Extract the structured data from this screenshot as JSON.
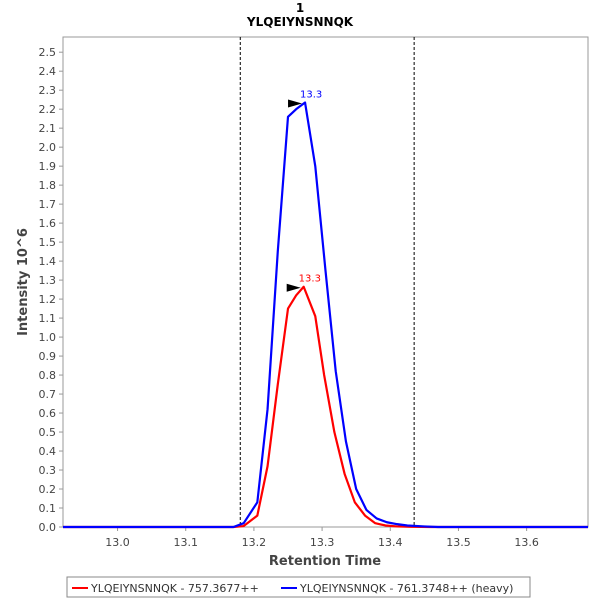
{
  "chart_data": {
    "type": "line",
    "title": "1",
    "subtitle": "YLQEIYNSNNQK",
    "xlabel": "Retention Time",
    "ylabel": "Intensity 10^6",
    "xlim": [
      12.92,
      13.69
    ],
    "ylim": [
      0,
      2.58
    ],
    "x_ticks": [
      "13.0",
      "13.1",
      "13.2",
      "13.3",
      "13.4",
      "13.5",
      "13.6"
    ],
    "y_ticks": [
      "0.0",
      "0.1",
      "0.2",
      "0.3",
      "0.4",
      "0.5",
      "0.6",
      "0.7",
      "0.8",
      "0.9",
      "1.0",
      "1.1",
      "1.2",
      "1.3",
      "1.4",
      "1.5",
      "1.6",
      "1.7",
      "1.8",
      "1.9",
      "2.0",
      "2.1",
      "2.2",
      "2.3",
      "2.4",
      "2.5"
    ],
    "boundaries": [
      13.18,
      13.435
    ],
    "grid": false,
    "legend_placement": "bottom",
    "series": [
      {
        "name": "YLQEIYNSNNQK - 757.3677++",
        "color": "#ff0000",
        "peak_label": "13.3",
        "peak": [
          13.273,
          1.265
        ],
        "x": [
          12.92,
          13.17,
          13.185,
          13.205,
          13.22,
          13.235,
          13.25,
          13.262,
          13.273,
          13.29,
          13.303,
          13.318,
          13.333,
          13.348,
          13.363,
          13.378,
          13.393,
          13.41,
          13.43,
          13.46,
          13.69
        ],
        "values": [
          0,
          0,
          0.005,
          0.06,
          0.32,
          0.75,
          1.15,
          1.22,
          1.265,
          1.11,
          0.8,
          0.5,
          0.28,
          0.13,
          0.06,
          0.02,
          0.008,
          0.003,
          0.001,
          0,
          0
        ]
      },
      {
        "name": "YLQEIYNSNNQK - 761.3748++ (heavy)",
        "color": "#0000ff",
        "peak_label": "13.3",
        "peak": [
          13.275,
          2.235
        ],
        "x": [
          12.92,
          13.17,
          13.185,
          13.205,
          13.22,
          13.235,
          13.25,
          13.262,
          13.275,
          13.29,
          13.305,
          13.32,
          13.335,
          13.35,
          13.365,
          13.38,
          13.395,
          13.41,
          13.425,
          13.45,
          13.47,
          13.69
        ],
        "values": [
          0,
          0,
          0.02,
          0.13,
          0.62,
          1.45,
          2.16,
          2.2,
          2.235,
          1.9,
          1.35,
          0.82,
          0.45,
          0.2,
          0.09,
          0.045,
          0.025,
          0.015,
          0.008,
          0.003,
          0,
          0
        ]
      }
    ]
  }
}
